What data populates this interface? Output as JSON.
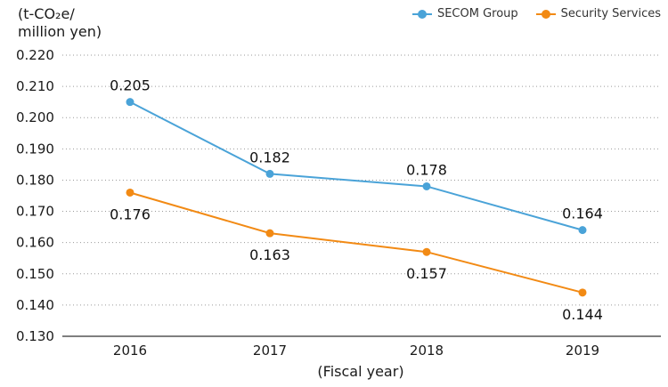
{
  "unit_label": {
    "line1": "(t-CO₂e/",
    "line2": "million yen)"
  },
  "legend": [
    {
      "name": "SECOM Group",
      "color": "#4aa3d8"
    },
    {
      "name": "Security Services",
      "color": "#f28a14"
    }
  ],
  "chart_data": {
    "type": "line",
    "x": [
      "2016",
      "2017",
      "2018",
      "2019"
    ],
    "xlabel": "(Fiscal year)",
    "ylabel": "(t-CO₂e/ million yen)",
    "ylim": [
      0.13,
      0.22
    ],
    "yticks": [
      "0.130",
      "0.140",
      "0.150",
      "0.160",
      "0.170",
      "0.180",
      "0.190",
      "0.200",
      "0.210",
      "0.220"
    ],
    "grid": "horizontal dotted",
    "legend_position": "top-right",
    "series": [
      {
        "name": "SECOM Group",
        "color": "#4aa3d8",
        "values": [
          0.205,
          0.182,
          0.178,
          0.164
        ],
        "labels": [
          "0.205",
          "0.182",
          "0.178",
          "0.164"
        ],
        "label_position": "above"
      },
      {
        "name": "Security Services",
        "color": "#f28a14",
        "values": [
          0.176,
          0.163,
          0.157,
          0.144
        ],
        "labels": [
          "0.176",
          "0.163",
          "0.157",
          "0.144"
        ],
        "label_position": "below"
      }
    ]
  }
}
